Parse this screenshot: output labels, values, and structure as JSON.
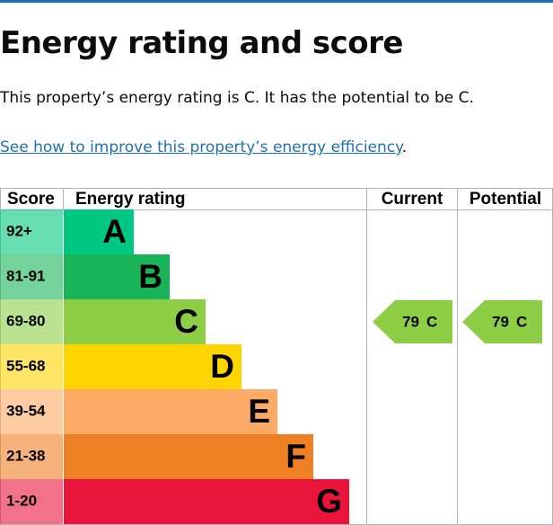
{
  "header": {
    "title": "Energy rating and score"
  },
  "intro": "This property’s energy rating is C. It has the potential to be C.",
  "link": {
    "text": "See how to improve this property’s energy efficiency",
    "after": "."
  },
  "table": {
    "headers": [
      "Score",
      "Energy rating",
      "Current",
      "Potential"
    ],
    "bands": [
      {
        "score": "92+",
        "rating": "A",
        "color": "#00c781"
      },
      {
        "score": "81-91",
        "rating": "B",
        "color": "#19b459"
      },
      {
        "score": "69-80",
        "rating": "C",
        "color": "#8dce46"
      },
      {
        "score": "55-68",
        "rating": "D",
        "color": "#ffd500"
      },
      {
        "score": "39-54",
        "rating": "E",
        "color": "#fcaa65"
      },
      {
        "score": "21-38",
        "rating": "F",
        "color": "#ef8023"
      },
      {
        "score": "1-20",
        "rating": "G",
        "color": "#e9153b"
      }
    ],
    "current": {
      "score": "79",
      "rating": "C"
    },
    "potential": {
      "score": "79",
      "rating": "C"
    }
  }
}
